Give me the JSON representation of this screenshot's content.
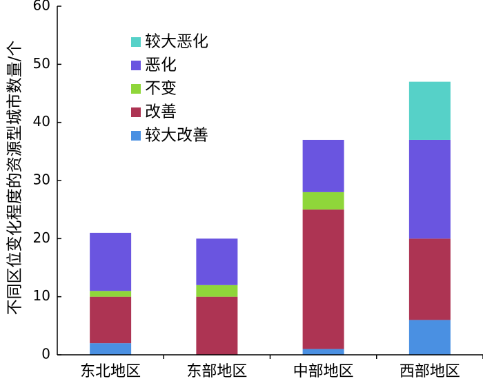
{
  "chart_data": {
    "type": "bar",
    "stacked": true,
    "title": "",
    "xlabel": "",
    "ylabel": "不同区位变化程度的资源型城市数量/个",
    "ylim": [
      0,
      60
    ],
    "yticks": [
      0,
      10,
      20,
      30,
      40,
      50,
      60
    ],
    "grid": false,
    "legend_position": "top-left",
    "categories": [
      "东北地区",
      "东部地区",
      "中部地区",
      "西部地区"
    ],
    "series": [
      {
        "name": "较大改善",
        "color": "#4a90e2",
        "values": [
          2,
          0,
          1,
          6
        ]
      },
      {
        "name": "改善",
        "color": "#ad3453",
        "values": [
          8,
          10,
          24,
          14
        ]
      },
      {
        "name": "不变",
        "color": "#8fd63a",
        "values": [
          1,
          2,
          3,
          0
        ]
      },
      {
        "name": "恶化",
        "color": "#6a55e0",
        "values": [
          10,
          8,
          9,
          17
        ]
      },
      {
        "name": "较大恶化",
        "color": "#56d1c8",
        "values": [
          0,
          0,
          0,
          10
        ]
      }
    ],
    "legend_order": [
      "较大恶化",
      "恶化",
      "不变",
      "改善",
      "较大改善"
    ]
  }
}
